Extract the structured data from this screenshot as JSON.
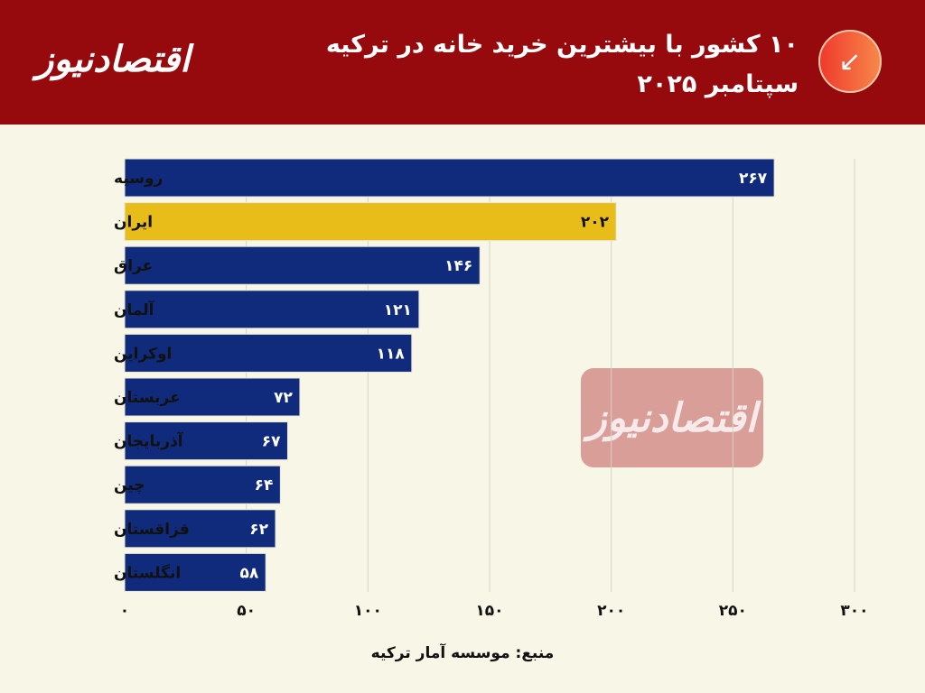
{
  "header": {
    "logo_text": "اقتصادنیوز",
    "title_line1": "۱۰ کشور با بیشترین خرید خانه در ترکیه",
    "title_line2": "سپتامبر ۲۰۲۵",
    "badge_icon": "arrow-down-left-icon"
  },
  "watermark": "اقتصادنیوز",
  "source": "منبع: موسسه آمار ترکیه",
  "colors": {
    "header": "#960a0e",
    "bar": "#102a7c",
    "highlight": "#e8bd1a",
    "background": "#f8f6e6"
  },
  "chart_data": {
    "type": "bar",
    "orientation": "horizontal",
    "title": "۱۰ کشور با بیشترین خرید خانه در ترکیه سپتامبر ۲۰۲۵",
    "categories": [
      "روسیه",
      "ایران",
      "عراق",
      "آلمان",
      "اوکراین",
      "عربستان",
      "آذربایجان",
      "چین",
      "قزاقستان",
      "انگلستان"
    ],
    "values": [
      267,
      202,
      146,
      121,
      118,
      72,
      67,
      64,
      62,
      58
    ],
    "value_labels": [
      "۲۶۷",
      "۲۰۲",
      "۱۴۶",
      "۱۲۱",
      "۱۱۸",
      "۷۲",
      "۶۷",
      "۶۴",
      "۶۲",
      "۵۸"
    ],
    "highlight": "ایران",
    "xlim": [
      0,
      300
    ],
    "xticks": [
      0,
      50,
      100,
      150,
      200,
      250,
      300
    ],
    "xtick_labels": [
      "۰",
      "۵۰",
      "۱۰۰",
      "۱۵۰",
      "۲۰۰",
      "۲۵۰",
      "۳۰۰"
    ],
    "grid": "vertical",
    "xlabel": "",
    "ylabel": ""
  }
}
